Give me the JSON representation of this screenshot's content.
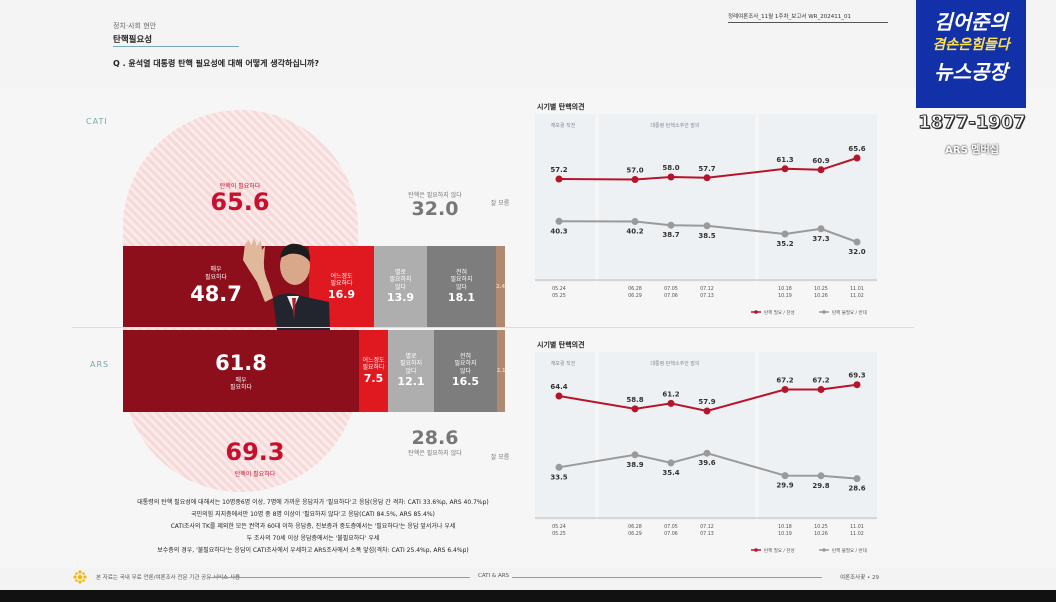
{
  "header": {
    "category": "정치·사회 현안",
    "title": "탄핵필요성",
    "question": "Q . 윤석열 대통령 탄핵 필요성에 대해 어떻게 생각하십니까?",
    "report": "정례여론조사_11월 1주차_보고서   WR_202411_01"
  },
  "cati": {
    "section_label": "CATI",
    "need_label": "탄핵이 필요하다",
    "need_value": "65.6",
    "noneed_label": "탄핵은 필요하지 않다",
    "noneed_value": "32.0",
    "dontknow": "잘 모름",
    "segments": [
      {
        "label": "매우\n필요하다",
        "value": "48.7",
        "color": "#8e0f1c"
      },
      {
        "label": "어느정도\n필요하다",
        "value": "16.9",
        "color": "#e0181f"
      },
      {
        "label": "별로\n필요하지\n않다",
        "value": "13.9",
        "color": "#aeaeae"
      },
      {
        "label": "전혀\n필요하지\n않다",
        "value": "18.1",
        "color": "#7d7d7d"
      },
      {
        "label": "",
        "value": "2.4",
        "color": "#b08a70"
      }
    ]
  },
  "ars": {
    "section_label": "ARS",
    "need_label": "탄핵이 필요하다",
    "need_value": "69.3",
    "noneed_label": "탄핵은 필요하지 않다",
    "noneed_value": "28.6",
    "dontknow": "잘 모름",
    "segments": [
      {
        "label": "매우\n필요하다",
        "value": "61.8",
        "color": "#8e0f1c"
      },
      {
        "label": "어느정도\n필요하다",
        "value": "7.5",
        "color": "#e0181f"
      },
      {
        "label": "별로\n필요하지\n않다",
        "value": "12.1",
        "color": "#aeaeae"
      },
      {
        "label": "전혀\n필요하지\n않다",
        "value": "16.5",
        "color": "#7d7d7d"
      },
      {
        "label": "",
        "value": "2.1",
        "color": "#b08a70"
      }
    ]
  },
  "notes": [
    "대통령의 탄핵 필요성에 대해서는 10명중6명 이상, 7명에 가까운 응답자가 '필요하다'고 응답(응답 간 격차: CATI 33.6%p, ARS 40.7%p)",
    "국민의힘 지지층에서만 10명 중 8명 이상이 '필요하지 않다'고 응답(CATI 84.5%, ARS 85.4%)",
    "CATI조사의 TK를 제외한 모든 권역과 60대 이하 응답층, 진보층과 중도층에서는 '필요하다'는 응답 앞서거나 우세",
    "두 조사의 70세 이상 응답층에서는 '불필요하다' 우세",
    "보수층의 경우, '불필요하다'는 응답이 CATI조사에서 우세하고 ARS조사에서 소폭 앞섬(격차: CATI 25.4%p, ARS 6.4%p)"
  ],
  "footer": {
    "left": "본 자료는 국내 무료 언론/여론조사 전문 기관 공유 서비스 사용",
    "center": "CATI & ARS",
    "right": "여론조사꽃 • 29"
  },
  "logo": {
    "line1": "김어준의",
    "line2": "겸손은힘들다",
    "line3": "뉴스공장",
    "phone": "1877-1907",
    "member": "ARS 멤버십"
  },
  "chart_data": [
    {
      "type": "line",
      "title": "시기별 탄핵의견",
      "period_labels": [
        "재보궐 직전",
        "대통령 탄핵소추안 발의"
      ],
      "x": [
        "05.24\n05.25",
        "06.28\n06.29",
        "07.05\n07.06",
        "07.12\n07.13",
        "10.18\n10.19",
        "10.25\n10.26",
        "11.01\n11.02"
      ],
      "series": [
        {
          "name": "탄핵 필요 / 찬성",
          "color": "#b5152b",
          "values": [
            57.2,
            57.0,
            58.0,
            57.7,
            61.3,
            60.9,
            65.6
          ]
        },
        {
          "name": "탄핵 불필요 / 반대",
          "color": "#9a9a9a",
          "values": [
            40.3,
            40.2,
            38.7,
            38.5,
            35.2,
            37.3,
            32.0
          ]
        }
      ]
    },
    {
      "type": "line",
      "title": "시기별 탄핵의견",
      "period_labels": [
        "재보궐 직전",
        "대통령 탄핵소추안 발의"
      ],
      "x": [
        "05.24\n05.25",
        "06.28\n06.29",
        "07.05\n07.06",
        "07.12\n07.13",
        "10.18\n10.19",
        "10.25\n10.26",
        "11.01\n11.02"
      ],
      "series": [
        {
          "name": "탄핵 필요 / 찬성",
          "color": "#b5152b",
          "values": [
            64.4,
            58.8,
            61.2,
            57.9,
            67.2,
            67.2,
            69.3
          ]
        },
        {
          "name": "탄핵 불필요 / 반대",
          "color": "#9a9a9a",
          "values": [
            33.5,
            38.9,
            35.4,
            39.6,
            29.9,
            29.8,
            28.6
          ]
        }
      ]
    }
  ]
}
